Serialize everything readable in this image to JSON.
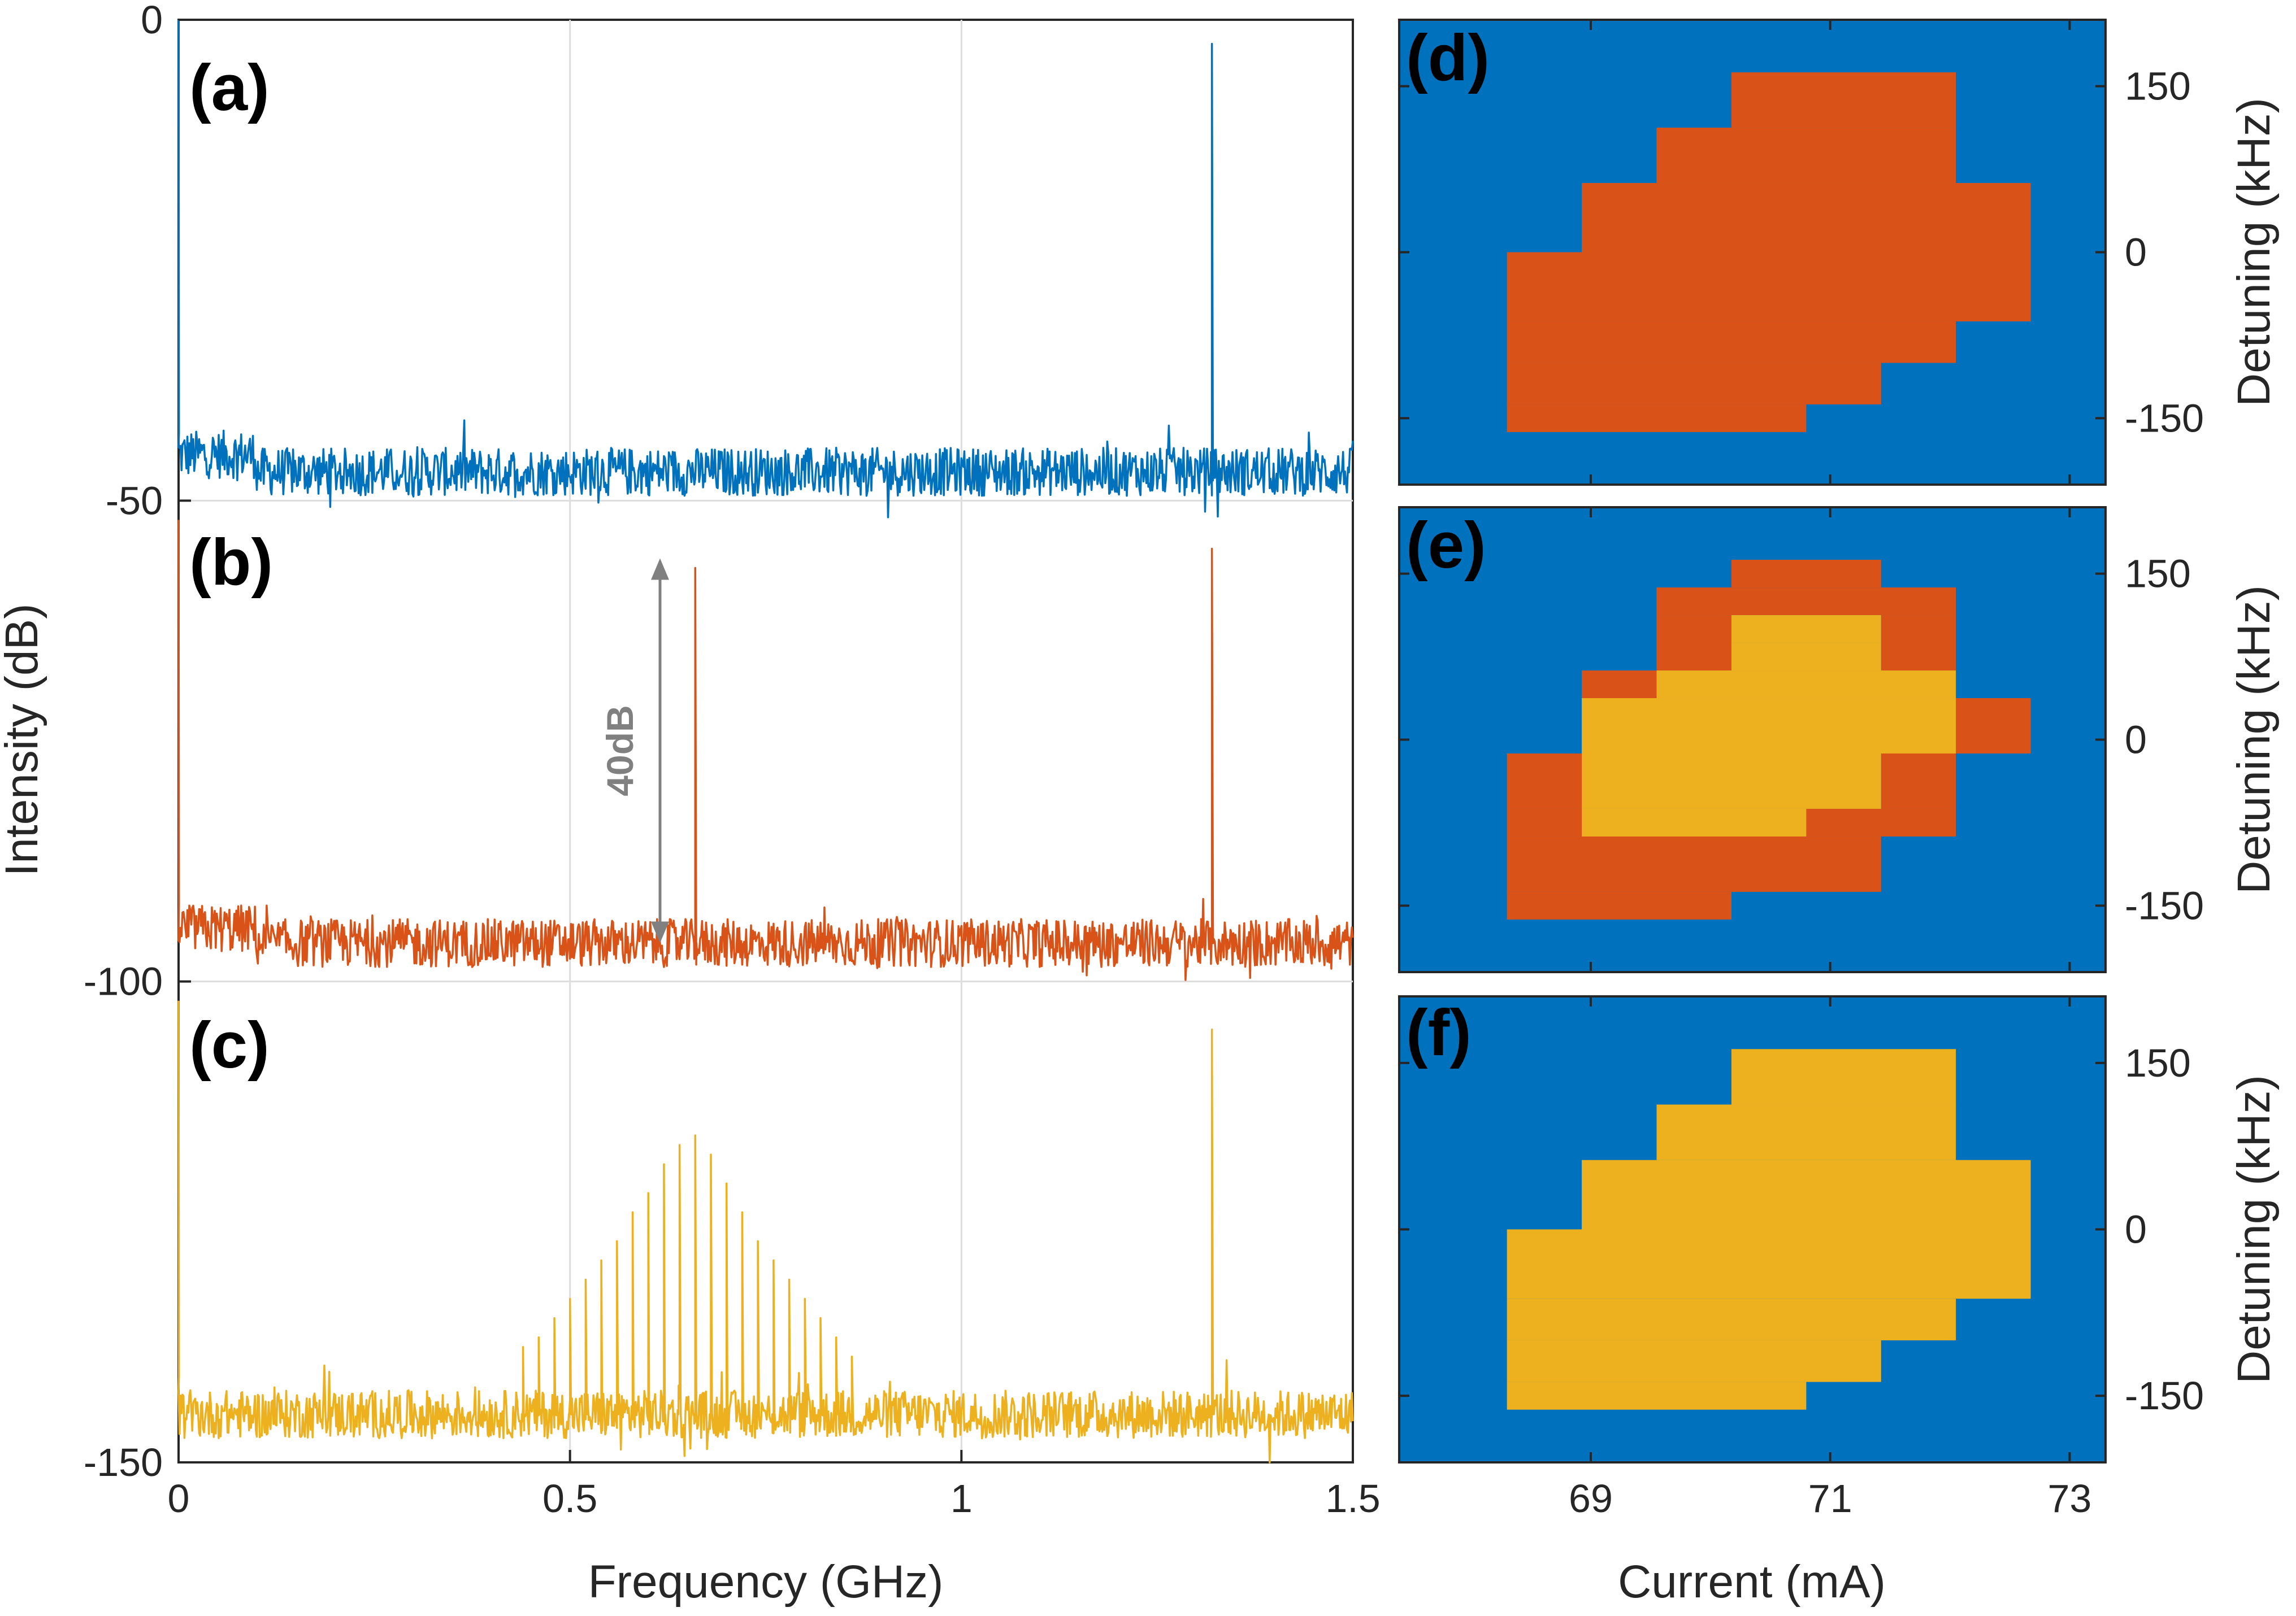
{
  "chart_data": [
    {
      "type": "line",
      "panels": [
        "(a)",
        "(b)",
        "(c)"
      ],
      "xlabel": "Frequency (GHz)",
      "ylabel": "Intensity (dB)",
      "xlim": [
        0,
        1.5
      ],
      "ylim": [
        -150,
        0
      ],
      "xticks": [
        0,
        0.5,
        1,
        1.5
      ],
      "xtick_labels": [
        "0",
        "0.5",
        "1",
        "1.5"
      ],
      "yticks": [
        0,
        -50,
        -100,
        -150
      ],
      "ytick_labels": [
        "0",
        "-50",
        "-100",
        "-150"
      ],
      "grid": true,
      "series": [
        {
          "name": "(a)",
          "color": "#0072BD",
          "noise_floor": -47,
          "noise_amplitude": 2.5,
          "peaks": [
            {
              "x": 1.32,
              "y": -2.5
            }
          ]
        },
        {
          "name": "(b)",
          "color": "#D95319",
          "noise_floor": -96,
          "noise_amplitude": 2.5,
          "peaks": [
            {
              "x": 0.66,
              "y": -57
            },
            {
              "x": 1.32,
              "y": -55
            }
          ]
        },
        {
          "name": "(c)",
          "color": "#EDB120",
          "noise_floor": -145,
          "noise_amplitude": 2.5,
          "peaks": [
            {
              "x": 1.32,
              "y": -105
            },
            {
              "x": 0.44,
              "y": -138
            },
            {
              "x": 0.46,
              "y": -137
            },
            {
              "x": 0.48,
              "y": -135
            },
            {
              "x": 0.5,
              "y": -133
            },
            {
              "x": 0.52,
              "y": -131
            },
            {
              "x": 0.54,
              "y": -129
            },
            {
              "x": 0.56,
              "y": -127
            },
            {
              "x": 0.58,
              "y": -124
            },
            {
              "x": 0.6,
              "y": -122
            },
            {
              "x": 0.62,
              "y": -119
            },
            {
              "x": 0.64,
              "y": -117
            },
            {
              "x": 0.66,
              "y": -116
            },
            {
              "x": 0.68,
              "y": -118
            },
            {
              "x": 0.7,
              "y": -121
            },
            {
              "x": 0.72,
              "y": -124
            },
            {
              "x": 0.74,
              "y": -127
            },
            {
              "x": 0.76,
              "y": -129
            },
            {
              "x": 0.78,
              "y": -131
            },
            {
              "x": 0.8,
              "y": -133
            },
            {
              "x": 0.82,
              "y": -135
            },
            {
              "x": 0.84,
              "y": -137
            },
            {
              "x": 0.86,
              "y": -139
            }
          ]
        }
      ],
      "annotation": {
        "text": "40dB",
        "x": 0.615,
        "y_top": -56,
        "y_bottom": -96,
        "color": "#808080"
      }
    },
    {
      "type": "heatmap",
      "panels": [
        "(d)",
        "(e)",
        "(f)"
      ],
      "xlabel": "Current (mA)",
      "ylabel": "Detuning (kHz)",
      "xlim": [
        67.4,
        73.3
      ],
      "ylim": [
        -210,
        210
      ],
      "xticks": [
        69,
        71,
        73
      ],
      "xtick_labels": [
        "69",
        "71",
        "73"
      ],
      "yticks": [
        150,
        0,
        -150
      ],
      "ytick_labels": [
        "150",
        "0",
        "-150"
      ],
      "background_color": "#0072BD",
      "cell_width_mA": 0.625,
      "cell_height_kHz": 75,
      "panels_data": [
        {
          "name": "(d)",
          "rows": [
            {
              "y": [
                112.5,
                162.5
              ],
              "x": [
                [
                  70.175,
                  72.05
                ]
              ]
            },
            {
              "y": [
                62.5,
                112.5
              ],
              "x": [
                [
                  69.55,
                  72.05
                ]
              ]
            },
            {
              "y": [
                0,
                62.5
              ],
              "x": [
                [
                  68.925,
                  72.675
                ]
              ]
            },
            {
              "y": [
                -62.5,
                0
              ],
              "x": [
                [
                  68.3,
                  72.675
                ]
              ]
            },
            {
              "y": [
                -100,
                -62.5
              ],
              "x": [
                [
                  68.3,
                  72.05
                ]
              ]
            },
            {
              "y": [
                -137.5,
                -100
              ],
              "x": [
                [
                  68.3,
                  71.425
                ]
              ]
            },
            {
              "y": [
                -162.5,
                -137.5
              ],
              "x": [
                [
                  68.3,
                  70.8
                ]
              ]
            }
          ],
          "color": "#D95319"
        },
        {
          "name": "(e)",
          "orange_rows": [
            {
              "y": [
                137.5,
                162.5
              ],
              "x": [
                [
                  70.175,
                  71.425
                ]
              ]
            },
            {
              "y": [
                112.5,
                137.5
              ],
              "x": [
                [
                  69.55,
                  72.05
                ]
              ]
            },
            {
              "y": [
                62.5,
                112.5
              ],
              "x": [
                [
                  69.55,
                  70.175
                ]
              ]
            },
            {
              "y": [
                62.5,
                112.5
              ],
              "x": [
                [
                  71.425,
                  72.05
                ]
              ]
            },
            {
              "y": [
                37.5,
                62.5
              ],
              "x": [
                [
                  68.925,
                  69.55
                ]
              ]
            },
            {
              "y": [
                -12.5,
                37.5
              ],
              "x": [
                [
                  72.05,
                  72.675
                ]
              ]
            },
            {
              "y": [
                -62.5,
                -12.5
              ],
              "x": [
                [
                  68.3,
                  68.925
                ]
              ]
            },
            {
              "y": [
                -62.5,
                -12.5
              ],
              "x": [
                [
                  71.425,
                  72.05
                ]
              ]
            },
            {
              "y": [
                -87.5,
                -62.5
              ],
              "x": [
                [
                  68.3,
                  72.05
                ]
              ]
            },
            {
              "y": [
                -137.5,
                -87.5
              ],
              "x": [
                [
                  68.3,
                  71.425
                ]
              ]
            },
            {
              "y": [
                -162.5,
                -137.5
              ],
              "x": [
                [
                  68.3,
                  70.175
                ]
              ]
            }
          ],
          "yellow_rows": [
            {
              "y": [
                87.5,
                112.5
              ],
              "x": [
                [
                  70.175,
                  71.425
                ]
              ]
            },
            {
              "y": [
                62.5,
                87.5
              ],
              "x": [
                [
                  70.175,
                  71.425
                ]
              ]
            },
            {
              "y": [
                37.5,
                62.5
              ],
              "x": [
                [
                  69.55,
                  72.05
                ]
              ]
            },
            {
              "y": [
                -12.5,
                37.5
              ],
              "x": [
                [
                  68.925,
                  72.05
                ]
              ]
            },
            {
              "y": [
                -62.5,
                -12.5
              ],
              "x": [
                [
                  68.925,
                  71.425
                ]
              ]
            },
            {
              "y": [
                -87.5,
                -62.5
              ],
              "x": [
                [
                  68.925,
                  70.8
                ]
              ]
            }
          ],
          "colors": [
            "#D95319",
            "#EDB120"
          ]
        },
        {
          "name": "(f)",
          "rows": [
            {
              "y": [
                112.5,
                162.5
              ],
              "x": [
                [
                  70.175,
                  72.05
                ]
              ]
            },
            {
              "y": [
                62.5,
                112.5
              ],
              "x": [
                [
                  69.55,
                  72.05
                ]
              ]
            },
            {
              "y": [
                0,
                62.5
              ],
              "x": [
                [
                  68.925,
                  72.675
                ]
              ]
            },
            {
              "y": [
                -62.5,
                0
              ],
              "x": [
                [
                  68.3,
                  72.675
                ]
              ]
            },
            {
              "y": [
                -100,
                -62.5
              ],
              "x": [
                [
                  68.3,
                  72.05
                ]
              ]
            },
            {
              "y": [
                -137.5,
                -100
              ],
              "x": [
                [
                  68.3,
                  71.425
                ]
              ]
            },
            {
              "y": [
                -162.5,
                -137.5
              ],
              "x": [
                [
                  68.3,
                  70.8
                ]
              ]
            }
          ],
          "color": "#EDB120"
        }
      ]
    }
  ]
}
